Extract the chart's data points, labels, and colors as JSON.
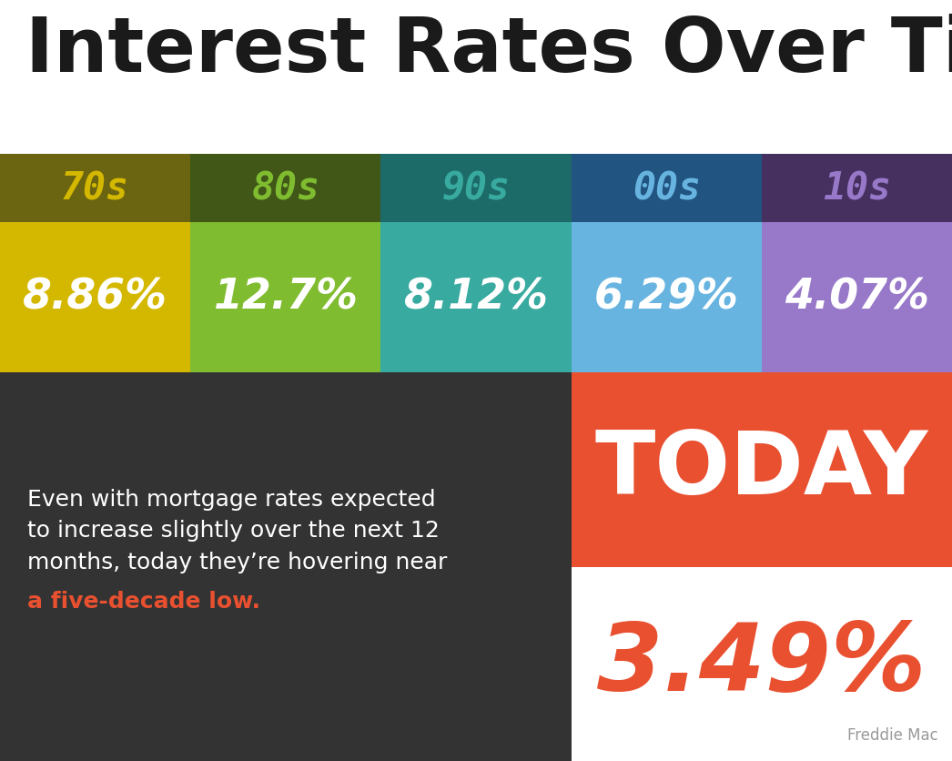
{
  "title": "Interest Rates Over Time",
  "title_color": "#1a1a1a",
  "title_fontsize": 60,
  "background_color": "#ffffff",
  "decades": [
    "70s",
    "80s",
    "90s",
    "00s",
    "10s"
  ],
  "rates": [
    "8.86%",
    "12.7%",
    "8.12%",
    "6.29%",
    "4.07%"
  ],
  "header_bg_colors": [
    "#6b6410",
    "#405718",
    "#1d6b68",
    "#215480",
    "#463060"
  ],
  "cell_bg_colors": [
    "#d4b800",
    "#80bc30",
    "#38aaa0",
    "#68b4e0",
    "#9878c8"
  ],
  "decade_label_colors": [
    "#d4b800",
    "#80bc30",
    "#38aaa0",
    "#68b4e0",
    "#9878c8"
  ],
  "rate_text_color": "#ffffff",
  "bottom_left_bg": "#333333",
  "today_bg": "#e85030",
  "today_bottom_bg": "#ffffff",
  "today_text": "TODAY",
  "today_text_color": "#ffffff",
  "today_rate": "3.49%",
  "today_rate_color": "#e85030",
  "body_text_white": "Even with mortgage rates expected\nto increase slightly over the next 12\nmonths, today they’re hovering near",
  "body_text_red": "a five-decade low.",
  "body_text_color": "#ffffff",
  "body_text_red_color": "#e85030",
  "source_text": "Freddie Mac",
  "source_color": "#999999",
  "fig_w": 10.46,
  "fig_h": 8.37,
  "dpi": 100
}
